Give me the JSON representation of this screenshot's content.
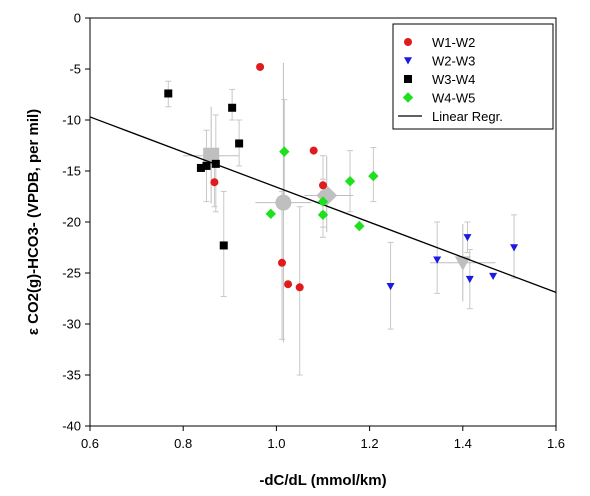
{
  "chart_data": {
    "type": "scatter",
    "xlabel": "-dC/dL (mmol/km)",
    "ylabel": "ε CO2(g)-HCO3- (VPDB, per mil)",
    "xlim": [
      0.6,
      1.6
    ],
    "ylim": [
      -40,
      0
    ],
    "xticks": [
      "0.6",
      "0.8",
      "1.0",
      "1.2",
      "1.4",
      "1.6"
    ],
    "yticks": [
      "0",
      "-5",
      "-10",
      "-15",
      "-20",
      "-25",
      "-30",
      "-35",
      "-40"
    ],
    "grid": false,
    "legend_position": "top-right",
    "series": [
      {
        "name": "W1-W2",
        "marker": "circle",
        "color": "#e01b1b",
        "points": [
          {
            "x": 0.965,
            "y": -4.8
          },
          {
            "x": 0.867,
            "y": -16.1,
            "ylo": -18.5,
            "yhi": -13.7
          },
          {
            "x": 1.08,
            "y": -13.0
          },
          {
            "x": 1.1,
            "y": -16.4,
            "ylo": -19.0,
            "yhi": -13.5
          },
          {
            "x": 1.012,
            "y": -24.0,
            "ylo": -31.5,
            "yhi": -17.0
          },
          {
            "x": 1.025,
            "y": -26.1
          },
          {
            "x": 1.05,
            "y": -26.4,
            "ylo": -35.0,
            "yhi": -18.5
          }
        ]
      },
      {
        "name": "W2-W3",
        "marker": "triangle-down",
        "color": "#1a1ae0",
        "points": [
          {
            "x": 1.245,
            "y": -26.3,
            "ylo": -30.5,
            "yhi": -22.0
          },
          {
            "x": 1.345,
            "y": -23.7,
            "ylo": -27.0,
            "yhi": -20.0
          },
          {
            "x": 1.41,
            "y": -21.5,
            "ylo": -23.0,
            "yhi": -20.0
          },
          {
            "x": 1.415,
            "y": -25.6,
            "ylo": -28.5,
            "yhi": -22.7
          },
          {
            "x": 1.465,
            "y": -25.3
          },
          {
            "x": 1.51,
            "y": -22.5,
            "ylo": -25.5,
            "yhi": -19.3
          }
        ]
      },
      {
        "name": "W3-W4",
        "marker": "square",
        "color": "#000000",
        "points": [
          {
            "x": 0.768,
            "y": -7.4,
            "ylo": -8.7,
            "yhi": -6.2
          },
          {
            "x": 0.838,
            "y": -14.7
          },
          {
            "x": 0.85,
            "y": -14.5,
            "ylo": -18.0,
            "yhi": -11.0
          },
          {
            "x": 0.87,
            "y": -14.3,
            "ylo": -19.0,
            "yhi": -9.5
          },
          {
            "x": 0.887,
            "y": -22.3,
            "ylo": -27.3,
            "yhi": -17.0
          },
          {
            "x": 0.905,
            "y": -8.8,
            "ylo": -10.0,
            "yhi": -7.0
          },
          {
            "x": 0.92,
            "y": -12.3,
            "ylo": -14.5,
            "yhi": -10.0
          }
        ]
      },
      {
        "name": "W4-W5",
        "marker": "diamond",
        "color": "#1ee01e",
        "points": [
          {
            "x": 0.988,
            "y": -19.2
          },
          {
            "x": 1.017,
            "y": -13.1,
            "ylo": -18.0,
            "yhi": -8.0
          },
          {
            "x": 1.1,
            "y": -19.3,
            "ylo": -21.5,
            "yhi": -17.0
          },
          {
            "x": 1.1,
            "y": -18.0,
            "ylo": -20.5,
            "yhi": -15.8
          },
          {
            "x": 1.158,
            "y": -16.0,
            "ylo": -19.0,
            "yhi": -13.0
          },
          {
            "x": 1.178,
            "y": -20.4
          },
          {
            "x": 1.208,
            "y": -15.5,
            "ylo": -18.0,
            "yhi": -12.7
          }
        ]
      }
    ],
    "means": {
      "marker_color": "#bfbfbf",
      "points": [
        {
          "x": 0.86,
          "y": -13.5,
          "xlo": 0.8,
          "xhi": 0.92,
          "ylo": -18.2,
          "yhi": -8.7,
          "marker": "square"
        },
        {
          "x": 1.015,
          "y": -18.1,
          "xlo": 0.955,
          "xhi": 1.075,
          "ylo": -31.8,
          "yhi": -4.4,
          "marker": "circle"
        },
        {
          "x": 1.108,
          "y": -17.4,
          "xlo": 1.06,
          "xhi": 1.165,
          "ylo": -21.0,
          "yhi": -13.5,
          "marker": "diamond"
        },
        {
          "x": 1.4,
          "y": -24.0,
          "xlo": 1.33,
          "xhi": 1.47,
          "ylo": -27.8,
          "yhi": -20.2,
          "marker": "triangle-down"
        }
      ]
    },
    "regression": {
      "name": "Linear Regr.",
      "color": "#000000",
      "x": [
        0.6,
        1.6
      ],
      "y": [
        -9.7,
        -26.9
      ]
    }
  }
}
